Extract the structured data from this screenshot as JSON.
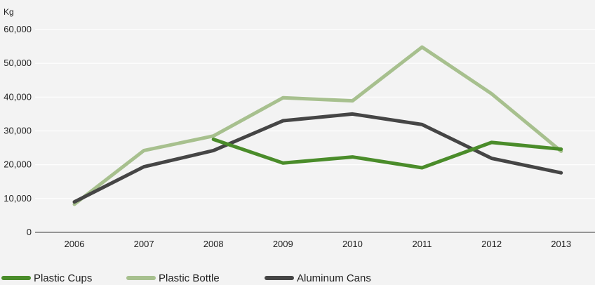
{
  "chart_data": {
    "type": "line",
    "title": "",
    "xlabel": "",
    "ylabel": "Kg",
    "categories": [
      "2006",
      "2007",
      "2008",
      "2009",
      "2010",
      "2011",
      "2012",
      "2013"
    ],
    "ylim": [
      0,
      60000
    ],
    "yticks": [
      0,
      10000,
      20000,
      30000,
      40000,
      50000,
      60000
    ],
    "ytick_labels": [
      "0",
      "10,000",
      "20,000",
      "30,000",
      "40,000",
      "50,000",
      "60,000"
    ],
    "grid": true,
    "legend_position": "bottom",
    "series": [
      {
        "name": "Plastic Cups",
        "color": "#4a8c2a",
        "values": [
          null,
          null,
          27500,
          20500,
          22300,
          19100,
          26600,
          24600
        ]
      },
      {
        "name": "Plastic Bottle",
        "color": "#a7c08e",
        "values": [
          8300,
          24200,
          28500,
          39800,
          38900,
          54800,
          41000,
          24000
        ]
      },
      {
        "name": "Aluminum Cans",
        "color": "#454545",
        "values": [
          9000,
          19400,
          24200,
          33000,
          35000,
          31900,
          21900,
          17600
        ]
      }
    ]
  }
}
